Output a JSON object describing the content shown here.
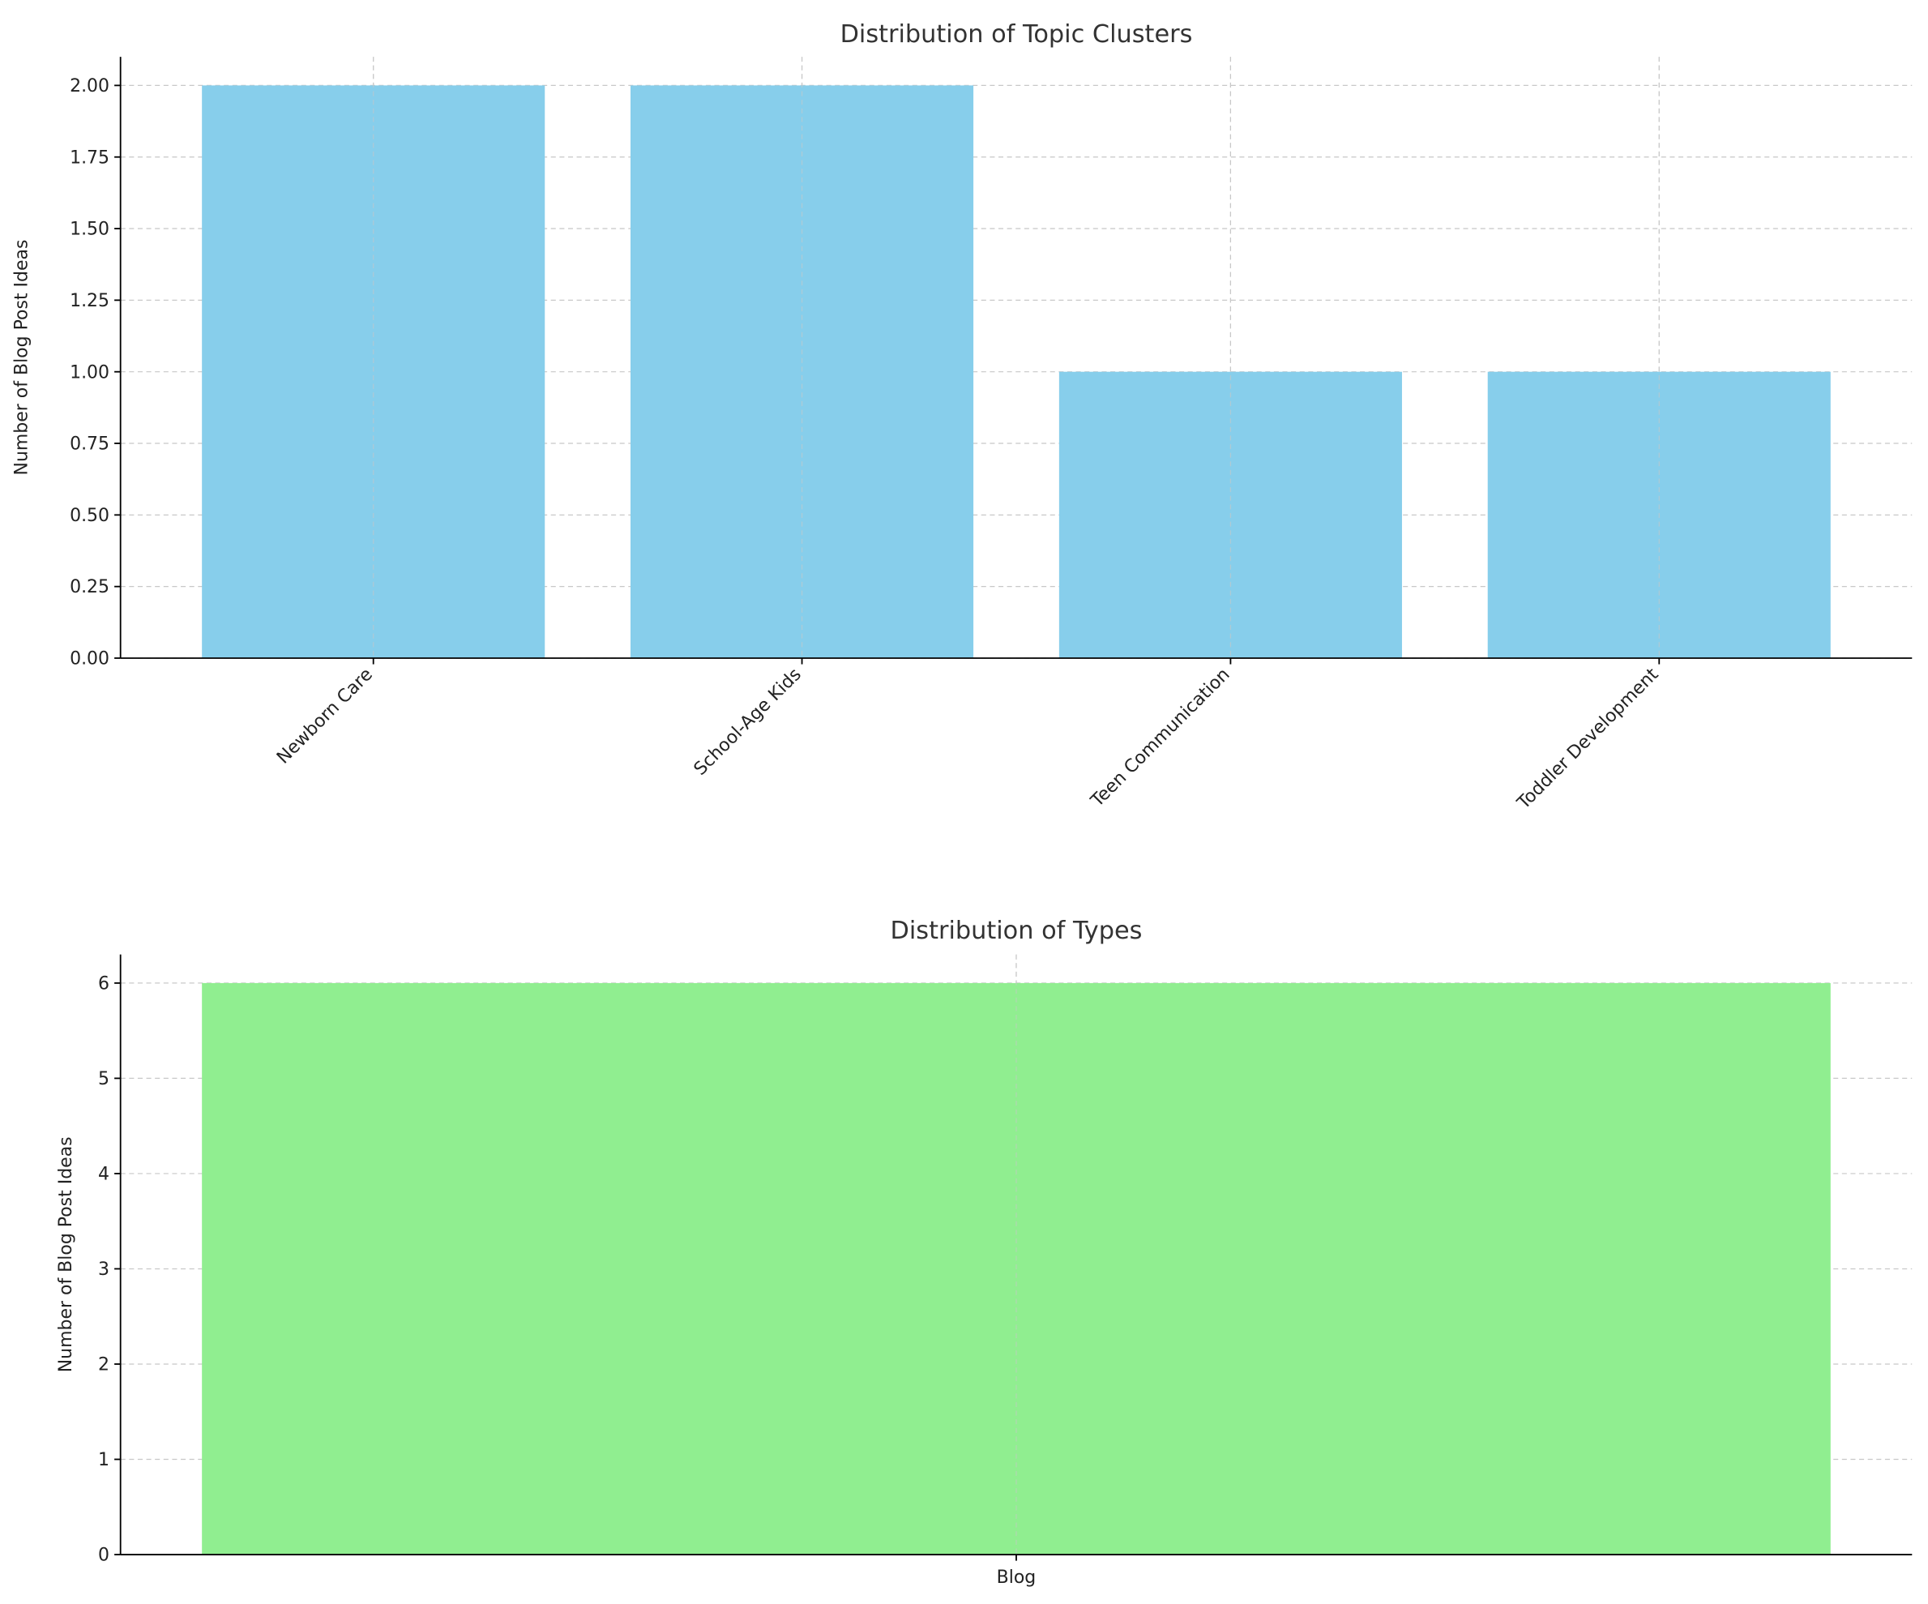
{
  "chart_data": [
    {
      "type": "bar",
      "title": "Distribution of Topic Clusters",
      "ylabel": "Number of Blog Post Ideas",
      "categories": [
        "Newborn Care",
        "School-Age Kids",
        "Teen Communication",
        "Toddler Development"
      ],
      "values": [
        2,
        2,
        1,
        1
      ],
      "color": "#87ceeb",
      "ylim": [
        0,
        2.1
      ],
      "yticks": [
        {
          "value": 0,
          "label": "0.00"
        },
        {
          "value": 0.25,
          "label": "0.25"
        },
        {
          "value": 0.5,
          "label": "0.50"
        },
        {
          "value": 0.75,
          "label": "0.75"
        },
        {
          "value": 1,
          "label": "1.00"
        },
        {
          "value": 1.25,
          "label": "1.25"
        },
        {
          "value": 1.5,
          "label": "1.50"
        },
        {
          "value": 1.75,
          "label": "1.75"
        },
        {
          "value": 2,
          "label": "2.00"
        }
      ],
      "grid": true
    },
    {
      "type": "bar",
      "title": "Distribution of Types",
      "ylabel": "Number of Blog Post Ideas",
      "categories": [
        "Blog"
      ],
      "values": [
        6
      ],
      "color": "#90ee90",
      "ylim": [
        0,
        6.3
      ],
      "yticks": [
        0,
        1,
        2,
        3,
        4,
        5,
        6
      ],
      "grid": true
    }
  ]
}
